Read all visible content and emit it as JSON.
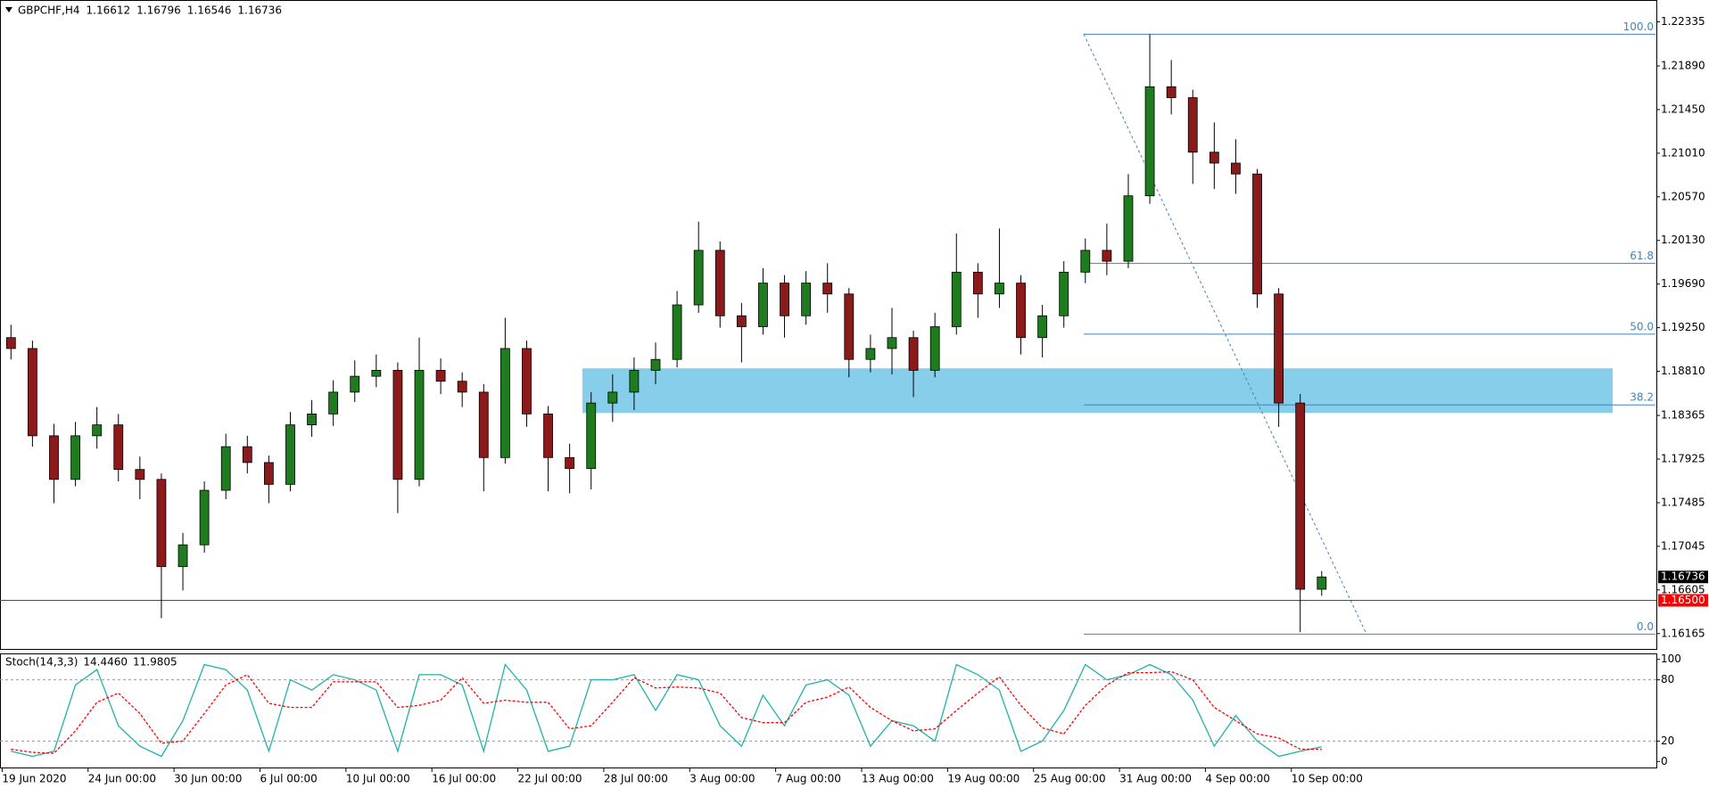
{
  "chart_data": [
    {
      "type": "candlestick",
      "title": "GBPCHF,H4",
      "ohlc_labels": [
        "1.16612",
        "1.16796",
        "1.16546",
        "1.16736"
      ],
      "categories": [
        null,
        "19 Jun 2020",
        null,
        null,
        null,
        "24 Jun 00:00",
        null,
        null,
        null,
        "30 Jun 00:00",
        null,
        null,
        null,
        "6 Jul 00:00",
        null,
        null,
        null,
        "10 Jul 00:00",
        null,
        null,
        null,
        "16 Jul 00:00",
        null,
        null,
        null,
        "22 Jul 00:00",
        null,
        null,
        null,
        "28 Jul 00:00",
        null,
        null,
        null,
        "3 Aug 00:00",
        null,
        null,
        null,
        "7 Aug 00:00",
        null,
        null,
        null,
        "13 Aug 00:00",
        null,
        null,
        null,
        "19 Aug 00:00",
        null,
        null,
        null,
        "25 Aug 00:00",
        null,
        null,
        null,
        "31 Aug 00:00",
        null,
        null,
        null,
        "4 Sep 00:00",
        null,
        null,
        null,
        "10 Sep 00:00"
      ],
      "open": [
        1.1915,
        1.1904,
        1.1816,
        1.1772,
        1.1816,
        1.1827,
        1.1782,
        1.1772,
        1.1684,
        1.1706,
        1.1761,
        1.1805,
        1.1789,
        1.1767,
        1.1827,
        1.1838,
        1.186,
        1.1876,
        1.1882,
        1.1772,
        1.1882,
        1.1871,
        1.186,
        1.1794,
        1.1904,
        1.1838,
        1.1794,
        1.1783,
        1.1849,
        1.186,
        1.1882,
        1.1893,
        1.1948,
        1.2003,
        1.1937,
        1.1926,
        1.197,
        1.1937,
        1.197,
        1.1959,
        1.1893,
        1.1904,
        1.1915,
        1.1882,
        1.1926,
        1.1981,
        1.1959,
        1.197,
        1.1915,
        1.1937,
        1.1981,
        1.2003,
        1.1992,
        1.2058,
        1.2168,
        1.2157,
        1.2102,
        1.2091,
        1.208,
        1.1959,
        1.1849,
        1.16612
      ],
      "high": [
        1.1928,
        1.1912,
        1.1828,
        1.183,
        1.1845,
        1.1838,
        1.1795,
        1.1778,
        1.1718,
        1.177,
        1.1818,
        1.1816,
        1.1796,
        1.184,
        1.1852,
        1.1872,
        1.1892,
        1.1898,
        1.189,
        1.1915,
        1.1894,
        1.188,
        1.1868,
        1.1935,
        1.1912,
        1.1846,
        1.1808,
        1.186,
        1.1878,
        1.1895,
        1.191,
        1.1962,
        1.2032,
        1.2012,
        1.195,
        1.1985,
        1.1978,
        1.1982,
        1.199,
        1.1965,
        1.1918,
        1.1945,
        1.1922,
        1.194,
        1.202,
        1.199,
        1.2025,
        1.1978,
        1.1948,
        1.1992,
        1.2015,
        1.203,
        1.208,
        1.2221,
        1.2195,
        1.2165,
        1.2132,
        1.2115,
        1.2085,
        1.1965,
        1.1858,
        1.16796
      ],
      "low": [
        1.1893,
        1.1805,
        1.1748,
        1.1765,
        1.1803,
        1.177,
        1.1752,
        1.1632,
        1.166,
        1.1698,
        1.1752,
        1.1778,
        1.1748,
        1.176,
        1.1815,
        1.1826,
        1.185,
        1.1865,
        1.1738,
        1.1765,
        1.1858,
        1.1845,
        1.176,
        1.1788,
        1.1825,
        1.176,
        1.1758,
        1.1762,
        1.183,
        1.1842,
        1.1868,
        1.1885,
        1.194,
        1.1925,
        1.189,
        1.1918,
        1.1915,
        1.1928,
        1.194,
        1.1875,
        1.188,
        1.1878,
        1.1855,
        1.1875,
        1.1918,
        1.1935,
        1.1945,
        1.1898,
        1.1895,
        1.1925,
        1.197,
        1.1978,
        1.1985,
        1.205,
        1.214,
        1.207,
        1.2065,
        1.206,
        1.1945,
        1.1825,
        1.1618,
        1.16546
      ],
      "close": [
        1.1904,
        1.1816,
        1.1772,
        1.1816,
        1.1827,
        1.1782,
        1.1772,
        1.1684,
        1.1706,
        1.1761,
        1.1805,
        1.1789,
        1.1767,
        1.1827,
        1.1838,
        1.186,
        1.1876,
        1.1882,
        1.1772,
        1.1882,
        1.1871,
        1.186,
        1.1794,
        1.1904,
        1.1838,
        1.1794,
        1.1783,
        1.1849,
        1.186,
        1.1882,
        1.1893,
        1.1948,
        1.2003,
        1.1937,
        1.1926,
        1.197,
        1.1937,
        1.197,
        1.1959,
        1.1893,
        1.1904,
        1.1915,
        1.1882,
        1.1926,
        1.1981,
        1.1959,
        1.197,
        1.1915,
        1.1937,
        1.1981,
        1.2003,
        1.1992,
        1.2058,
        1.2168,
        1.2157,
        1.2102,
        1.2091,
        1.208,
        1.1959,
        1.1849,
        1.16612,
        1.16736
      ],
      "up_color": "#1e7b1e",
      "down_color": "#8b1a1a",
      "ylim": [
        1.1601,
        1.2251
      ],
      "yticks": [
        1.22335,
        {
          "value": 1.2189,
          "label": "1.21890"
        },
        {
          "value": 1.2145,
          "label": "1.21450"
        },
        {
          "value": 1.2101,
          "label": "1.21010"
        },
        {
          "value": 1.2057,
          "label": "1.20570"
        },
        {
          "value": 1.2013,
          "label": "1.20130"
        },
        {
          "value": 1.1969,
          "label": "1.19690"
        },
        {
          "value": 1.1925,
          "label": "1.19250"
        },
        {
          "value": 1.1881,
          "label": "1.18810"
        },
        1.18365,
        1.17925,
        1.17485,
        1.17045,
        1.16605,
        1.16165
      ],
      "current_price": 1.16736,
      "level_line": {
        "value": 1.165,
        "label": "1.16500",
        "color": "#ff0000"
      },
      "zone": {
        "top": 1.1884,
        "bottom": 1.1839,
        "color": "#87ceeb"
      },
      "fib": {
        "high": 1.2221,
        "low": 1.1616,
        "color": "#4682b4",
        "levels": [
          {
            "value": 100,
            "label": "100.0"
          },
          {
            "value": 61.8,
            "label": "61.8"
          },
          {
            "value": 50,
            "label": "50.0"
          },
          {
            "value": 38.2,
            "label": "38.2"
          },
          {
            "value": 0,
            "label": "0.0"
          }
        ]
      }
    },
    {
      "type": "line",
      "title": "Stoch(14,3,3)",
      "value_labels": [
        "14.4460",
        "11.9805"
      ],
      "series": [
        {
          "color": "#20b2aa",
          "values": [
            10,
            5,
            10,
            75,
            90,
            35,
            15,
            5,
            40,
            95,
            90,
            70,
            10,
            80,
            70,
            85,
            80,
            70,
            10,
            85,
            85,
            75,
            10,
            95,
            70,
            10,
            15,
            80,
            80,
            85,
            50,
            85,
            80,
            35,
            15,
            65,
            35,
            75,
            80,
            65,
            15,
            40,
            35,
            20,
            95,
            85,
            70,
            10,
            20,
            50,
            95,
            80,
            85,
            95,
            85,
            60,
            15,
            45,
            20,
            5,
            10,
            14.446
          ]
        },
        {
          "color": "#ff0000",
          "dashed": true,
          "values": [
            12,
            9,
            8,
            30,
            58,
            67,
            47,
            18,
            20,
            47,
            75,
            85,
            57,
            53,
            53,
            78,
            78,
            78,
            53,
            55,
            60,
            82,
            57,
            60,
            58,
            58,
            32,
            35,
            58,
            82,
            72,
            73,
            72,
            67,
            43,
            38,
            38,
            58,
            63,
            73,
            53,
            40,
            30,
            32,
            50,
            67,
            83,
            55,
            33,
            27,
            55,
            75,
            87,
            87,
            88,
            80,
            53,
            40,
            27,
            23,
            12,
            11.9805
          ]
        }
      ],
      "ylim": [
        -5,
        105
      ],
      "yticks": [
        100,
        80,
        20,
        0
      ],
      "levels": [
        80,
        20
      ]
    }
  ]
}
